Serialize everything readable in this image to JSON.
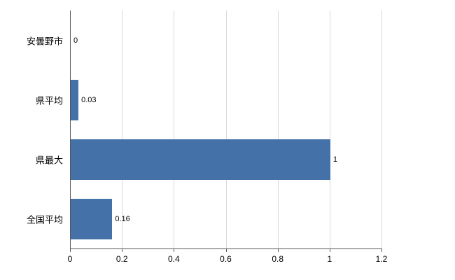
{
  "chart_data": {
    "type": "bar",
    "orientation": "horizontal",
    "title": "",
    "categories": [
      "安曇野市",
      "県平均",
      "県最大",
      "全国平均"
    ],
    "values": [
      0,
      0.03,
      1,
      0.16
    ],
    "value_labels": [
      "0",
      "0.03",
      "1",
      "0.16"
    ],
    "x_ticks": [
      0,
      0.2,
      0.4,
      0.6,
      0.8,
      1,
      1.2
    ],
    "x_tick_labels": [
      "0",
      "0.2",
      "0.4",
      "0.6",
      "0.8",
      "1",
      "1.2"
    ],
    "xlim": [
      0,
      1.2
    ],
    "grid": true,
    "legend": "none",
    "bar_color": "#4472a8",
    "gridline_color": "#d9d9d9",
    "axis_color": "#595959",
    "background": "#ffffff"
  }
}
